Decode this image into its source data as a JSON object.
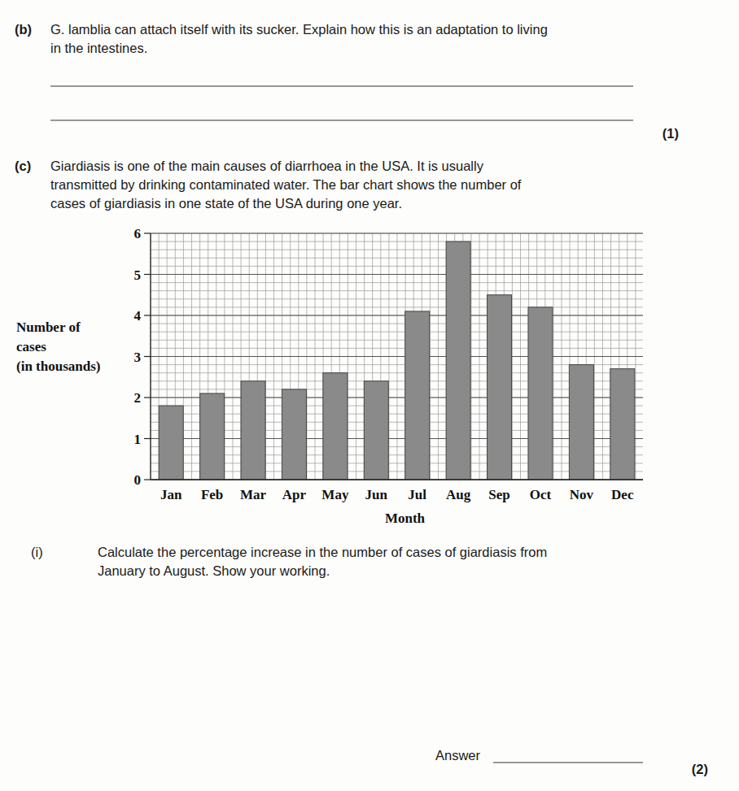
{
  "chart_data": {
    "type": "bar",
    "xlabel": "Month",
    "ylabel": [
      "Number of",
      "cases",
      "(in thousands)"
    ],
    "categories": [
      "Jan",
      "Feb",
      "Mar",
      "Apr",
      "May",
      "Jun",
      "Jul",
      "Aug",
      "Sep",
      "Oct",
      "Nov",
      "Dec"
    ],
    "values": [
      1.8,
      2.1,
      2.4,
      2.2,
      2.6,
      2.4,
      4.1,
      5.8,
      4.5,
      4.2,
      2.8,
      2.7
    ],
    "color": "#8a8a8a",
    "ylim": [
      0,
      6
    ],
    "yticks": [
      0,
      1,
      2,
      3,
      4,
      5,
      6
    ],
    "grid": true
  },
  "page": {
    "part_b": {
      "label": "(b)",
      "lines": [
        "G. lamblia can attach itself with its sucker. Explain how this is an adaptation to living",
        "in the intestines."
      ],
      "marks": "(1)"
    },
    "part_c": {
      "label": "(c)",
      "lines": [
        "Giardiasis is one of the main causes of diarrhoea in the USA. It is usually",
        "transmitted by drinking contaminated water. The bar chart shows the number of",
        "cases of giardiasis in one state of the USA during one year."
      ]
    },
    "part_c_i": {
      "label": "(i)",
      "lines": [
        "Calculate the percentage increase in the number of cases of giardiasis from",
        "January to August. Show your working."
      ],
      "answer": "Answer",
      "marks": "(2)"
    }
  }
}
